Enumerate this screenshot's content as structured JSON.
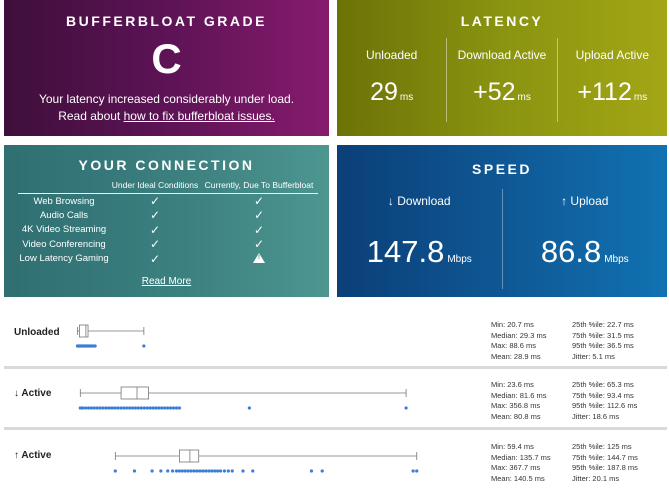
{
  "grade": {
    "title": "BUFFERBLOAT GRADE",
    "letter": "C",
    "line1": "Your latency increased considerably under load.",
    "line2_prefix": "Read about ",
    "link": "how to fix bufferbloat issues."
  },
  "latency": {
    "title": "LATENCY",
    "cols": [
      {
        "label": "Unloaded",
        "value": "29",
        "unit": "ms"
      },
      {
        "label": "Download Active",
        "value": "+52",
        "unit": "ms"
      },
      {
        "label": "Upload Active",
        "value": "+112",
        "unit": "ms"
      }
    ]
  },
  "connection": {
    "title": "YOUR CONNECTION",
    "col1": "Under Ideal Conditions",
    "col2": "Currently, Due To Bufferbloat",
    "check": "✓",
    "rows": [
      {
        "name": "Web Browsing",
        "ideal": "ok",
        "current": "ok"
      },
      {
        "name": "Audio Calls",
        "ideal": "ok",
        "current": "ok"
      },
      {
        "name": "4K Video Streaming",
        "ideal": "ok",
        "current": "ok"
      },
      {
        "name": "Video Conferencing",
        "ideal": "ok",
        "current": "ok"
      },
      {
        "name": "Low Latency Gaming",
        "ideal": "ok",
        "current": "warning"
      }
    ],
    "read_more": "Read More"
  },
  "speed": {
    "title": "SPEED",
    "download": {
      "label": "↓ Download",
      "value": "147.8",
      "unit": "Mbps"
    },
    "upload": {
      "label": "↑ Upload",
      "value": "86.8",
      "unit": "Mbps"
    }
  },
  "colors": {
    "grade": "#5d1356",
    "latency": "#8a9410",
    "connection": "#3c8080",
    "speed": "#0f5a97",
    "points": "#3a7fd5"
  },
  "rows": [
    {
      "label": "Unloaded",
      "box": {
        "min": 20.7,
        "q1": 22.7,
        "median": 29.3,
        "q3": 31.5,
        "max": 88.6
      },
      "outliers": [
        20.7,
        21.5,
        22.1,
        22.7,
        23.4,
        24.0,
        24.8,
        25.5,
        26.2,
        27.0,
        27.9,
        28.6,
        29.3,
        30.1,
        30.8,
        31.5,
        32.3,
        33.4,
        34.6,
        36.0,
        37.5,
        38.8,
        88.6
      ],
      "stats_left": [
        "Min: 20.7 ms",
        "Median: 29.3 ms",
        "Max: 88.6 ms",
        "Mean: 28.9 ms"
      ],
      "stats_right": [
        "25th %ile: 22.7 ms",
        "75th %ile: 31.5 ms",
        "95th %ile: 36.5 ms",
        "Jitter: 5.1 ms"
      ]
    },
    {
      "label": "↓ Active",
      "box": {
        "min": 23.6,
        "q1": 65.3,
        "median": 81.6,
        "q3": 93.4,
        "max": 356.8
      },
      "outliers": [
        23.6,
        26,
        29,
        32,
        35,
        38,
        41,
        44,
        47,
        50,
        53,
        56,
        59,
        62,
        65,
        68,
        71,
        74,
        77,
        80,
        83,
        86,
        89,
        92,
        95,
        98,
        101,
        104,
        107,
        110,
        113,
        116,
        119,
        122,
        125,
        196.5,
        356.8
      ],
      "stats_left": [
        "Min: 23.6 ms",
        "Median: 81.6 ms",
        "Max: 356.8 ms",
        "Mean: 80.8 ms"
      ],
      "stats_right": [
        "25th %ile: 65.3 ms",
        "75th %ile: 93.4 ms",
        "95th %ile: 112.6 ms",
        "Jitter: 18.6 ms"
      ]
    },
    {
      "label": "↑ Active",
      "box": {
        "min": 59.4,
        "q1": 125,
        "median": 135.7,
        "q3": 144.7,
        "max": 367.7
      },
      "outliers": [
        59.4,
        79,
        97,
        106,
        113,
        118,
        122,
        125,
        128,
        131,
        134,
        137,
        140,
        143,
        146,
        149,
        152,
        155,
        158,
        161,
        164,
        167,
        171,
        175,
        179,
        190,
        200,
        260,
        271,
        364,
        367.7
      ],
      "stats_left": [
        "Min: 59.4 ms",
        "Median: 135.7 ms",
        "Max: 367.7 ms",
        "Mean: 140.5 ms"
      ],
      "stats_right": [
        "25th %ile: 125 ms",
        "75th %ile: 144.7 ms",
        "95th %ile: 187.8 ms",
        "Jitter: 20.1 ms"
      ]
    }
  ]
}
